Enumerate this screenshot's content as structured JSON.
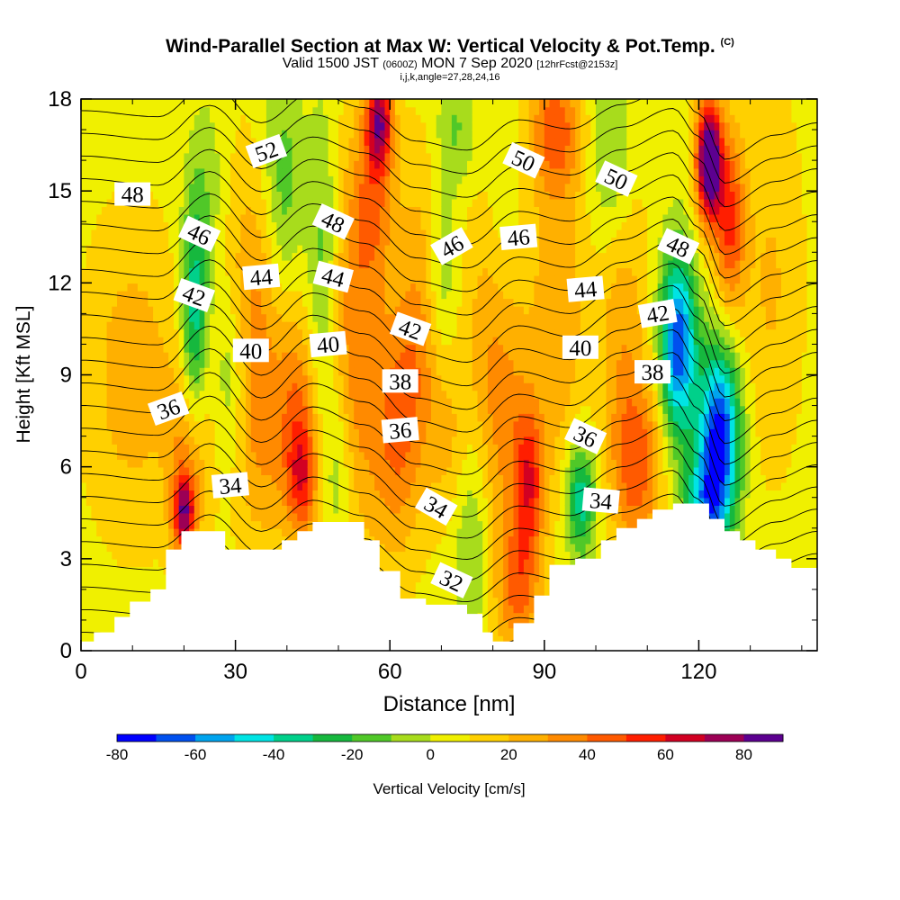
{
  "header": {
    "title": "Wind-Parallel Section at Max W: Vertical Velocity & Pot.Temp.",
    "title_mark": "(C)",
    "valid_prefix": "Valid 1500 JST",
    "valid_zulu": "(0600Z)",
    "valid_date": "MON 7 Sep 2020",
    "forecast": "[12hrFcst@2153z]",
    "params": "i,j,k,angle=27,28,24,16"
  },
  "chart_data": {
    "type": "heatmap",
    "xlabel": "Distance [nm]",
    "ylabel": "Height [Kft MSL]",
    "xlim": [
      0,
      143
    ],
    "ylim": [
      0,
      18
    ],
    "x_ticks": [
      0,
      30,
      60,
      90,
      120
    ],
    "y_ticks": [
      0,
      3,
      6,
      9,
      12,
      15,
      18
    ],
    "colorbar": {
      "label": "Vertical Velocity [cm/s]",
      "min": -80,
      "max": 90,
      "step": 10,
      "tick_values": [
        -80,
        -60,
        -40,
        -20,
        0,
        20,
        40,
        60,
        80
      ],
      "colors": [
        "#0000ff",
        "#0050ee",
        "#00a4ee",
        "#00e4e4",
        "#00d08a",
        "#16b83e",
        "#50c828",
        "#a8dc1c",
        "#f0f000",
        "#ffd000",
        "#ffb000",
        "#ff8a00",
        "#ff5a00",
        "#ff1e00",
        "#d20022",
        "#9c0055",
        "#5c0090"
      ]
    },
    "terrain_kft": [
      [
        0,
        0.3
      ],
      [
        2.5,
        0.3
      ],
      [
        2.5,
        0.6
      ],
      [
        6.5,
        0.6
      ],
      [
        6.5,
        1.1
      ],
      [
        9.5,
        1.1
      ],
      [
        9.5,
        1.6
      ],
      [
        13.5,
        1.6
      ],
      [
        13.5,
        2.0
      ],
      [
        16.5,
        2.0
      ],
      [
        16.5,
        3.3
      ],
      [
        19.5,
        3.3
      ],
      [
        19.5,
        3.9
      ],
      [
        28,
        3.9
      ],
      [
        28,
        3.3
      ],
      [
        39,
        3.3
      ],
      [
        39,
        3.6
      ],
      [
        42,
        3.6
      ],
      [
        42,
        3.9
      ],
      [
        45,
        3.9
      ],
      [
        45,
        4.2
      ],
      [
        55,
        4.2
      ],
      [
        55,
        3.6
      ],
      [
        58,
        3.6
      ],
      [
        58,
        2.6
      ],
      [
        62,
        2.6
      ],
      [
        62,
        1.7
      ],
      [
        67,
        1.7
      ],
      [
        67,
        1.5
      ],
      [
        75,
        1.5
      ],
      [
        75,
        1.2
      ],
      [
        78,
        1.2
      ],
      [
        78,
        0.6
      ],
      [
        80,
        0.6
      ],
      [
        80,
        0.3
      ],
      [
        84,
        0.3
      ],
      [
        84,
        0.9
      ],
      [
        88,
        0.9
      ],
      [
        88,
        1.8
      ],
      [
        91,
        1.8
      ],
      [
        91,
        2.8
      ],
      [
        96,
        2.8
      ],
      [
        96,
        3.0
      ],
      [
        101,
        3.0
      ],
      [
        101,
        3.6
      ],
      [
        104,
        3.6
      ],
      [
        104,
        4.0
      ],
      [
        108,
        4.0
      ],
      [
        108,
        4.3
      ],
      [
        111,
        4.3
      ],
      [
        111,
        4.6
      ],
      [
        115,
        4.6
      ],
      [
        115,
        4.8
      ],
      [
        122,
        4.8
      ],
      [
        122,
        4.3
      ],
      [
        125,
        4.3
      ],
      [
        125,
        3.9
      ],
      [
        128,
        3.9
      ],
      [
        128,
        3.6
      ],
      [
        131,
        3.6
      ],
      [
        131,
        3.3
      ],
      [
        135,
        3.3
      ],
      [
        135,
        3.0
      ],
      [
        138,
        3.0
      ],
      [
        138,
        2.7
      ],
      [
        143,
        2.7
      ]
    ],
    "w_features": [
      {
        "x": 10,
        "z": 9,
        "w": 20,
        "sx": 9,
        "sz": 5
      },
      {
        "x": 20,
        "z": 4.5,
        "w": 60,
        "sx": 2.2,
        "sz": 1.2
      },
      {
        "x": 21,
        "z": 6.5,
        "w": 28,
        "sx": 4,
        "sz": 3
      },
      {
        "x": 22,
        "z": 11,
        "w": -45,
        "sx": 2.5,
        "sz": 4
      },
      {
        "x": 25,
        "z": 15,
        "w": -12,
        "sx": 3,
        "sz": 3
      },
      {
        "x": 29,
        "z": 9,
        "w": -20,
        "sx": 3,
        "sz": 3
      },
      {
        "x": 34,
        "z": 11,
        "w": 28,
        "sx": 6,
        "sz": 5
      },
      {
        "x": 36,
        "z": 6,
        "w": 15,
        "sx": 6,
        "sz": 3
      },
      {
        "x": 39,
        "z": 15,
        "w": -25,
        "sx": 4,
        "sz": 4
      },
      {
        "x": 43,
        "z": 5.6,
        "w": 45,
        "sx": 3,
        "sz": 2
      },
      {
        "x": 42,
        "z": 8.5,
        "w": 25,
        "sx": 4,
        "sz": 3
      },
      {
        "x": 47,
        "z": 12.5,
        "w": -22,
        "sx": 3,
        "sz": 5
      },
      {
        "x": 50,
        "z": 6,
        "w": -18,
        "sx": 3,
        "sz": 3
      },
      {
        "x": 53,
        "z": 10,
        "w": 30,
        "sx": 5,
        "sz": 6
      },
      {
        "x": 58,
        "z": 17.3,
        "w": 60,
        "sx": 2.5,
        "sz": 1.5
      },
      {
        "x": 57,
        "z": 15,
        "w": 30,
        "sx": 4,
        "sz": 3
      },
      {
        "x": 61,
        "z": 7,
        "w": 32,
        "sx": 5,
        "sz": 4
      },
      {
        "x": 66,
        "z": 10,
        "w": 25,
        "sx": 5,
        "sz": 4
      },
      {
        "x": 66,
        "z": 15,
        "w": 8,
        "sx": 4,
        "sz": 3
      },
      {
        "x": 70,
        "z": 12,
        "w": -20,
        "sx": 3,
        "sz": 3
      },
      {
        "x": 72,
        "z": 6.5,
        "w": 15,
        "sx": 4,
        "sz": 3
      },
      {
        "x": 76,
        "z": 4,
        "w": -25,
        "sx": 4,
        "sz": 4
      },
      {
        "x": 73,
        "z": 17,
        "w": -18,
        "sx": 4,
        "sz": 2
      },
      {
        "x": 82,
        "z": 14,
        "w": -18,
        "sx": 4,
        "sz": 4
      },
      {
        "x": 81,
        "z": 9,
        "w": 32,
        "sx": 6,
        "sz": 7
      },
      {
        "x": 87,
        "z": 5.5,
        "w": 45,
        "sx": 3,
        "sz": 2.5
      },
      {
        "x": 85,
        "z": 2,
        "w": 30,
        "sx": 4,
        "sz": 2
      },
      {
        "x": 92,
        "z": 17,
        "w": 35,
        "sx": 5,
        "sz": 2
      },
      {
        "x": 93,
        "z": 11,
        "w": 22,
        "sx": 5,
        "sz": 6
      },
      {
        "x": 97,
        "z": 5,
        "w": -45,
        "sx": 3,
        "sz": 2
      },
      {
        "x": 103,
        "z": 16,
        "w": -22,
        "sx": 4,
        "sz": 3
      },
      {
        "x": 105,
        "z": 11,
        "w": 20,
        "sx": 5,
        "sz": 5
      },
      {
        "x": 108,
        "z": 6,
        "w": 38,
        "sx": 5,
        "sz": 3
      },
      {
        "x": 116,
        "z": 10,
        "w": -75,
        "sx": 3.5,
        "sz": 3
      },
      {
        "x": 124,
        "z": 7,
        "w": -80,
        "sx": 4,
        "sz": 3
      },
      {
        "x": 121,
        "z": 4.5,
        "w": -45,
        "sx": 4,
        "sz": 2
      },
      {
        "x": 122,
        "z": 16,
        "w": 95,
        "sx": 2.5,
        "sz": 2
      },
      {
        "x": 126,
        "z": 14,
        "w": 45,
        "sx": 3,
        "sz": 3
      },
      {
        "x": 134,
        "z": 12,
        "w": 15,
        "sx": 6,
        "sz": 6
      }
    ],
    "theta_isentropes_K": [
      31,
      32,
      33,
      34,
      35,
      36,
      37,
      38,
      39,
      40,
      41,
      42,
      43,
      44,
      45,
      46,
      47,
      48,
      49,
      50,
      51,
      52,
      53,
      54
    ],
    "theta_anchor_x": [
      0,
      15,
      25,
      35,
      45,
      55,
      65,
      75,
      85,
      95,
      105,
      115,
      120,
      125,
      135,
      143
    ],
    "theta_anchor_dz": [
      0,
      -0.2,
      0.9,
      -0.4,
      0.6,
      0.1,
      -1.0,
      -1.3,
      -0.3,
      -0.6,
      0.2,
      0.8,
      -0.1,
      -1.6,
      -0.8,
      -0.4
    ],
    "theta_labels": [
      {
        "text": "52",
        "x": 36,
        "z": 16.3,
        "rot": -20
      },
      {
        "text": "48",
        "x": 10,
        "z": 14.9,
        "rot": 0
      },
      {
        "text": "50",
        "x": 86,
        "z": 16.0,
        "rot": 25
      },
      {
        "text": "50",
        "x": 104,
        "z": 15.4,
        "rot": 25
      },
      {
        "text": "48",
        "x": 49,
        "z": 14.0,
        "rot": 25
      },
      {
        "text": "46",
        "x": 23,
        "z": 13.6,
        "rot": 25
      },
      {
        "text": "46",
        "x": 72,
        "z": 13.2,
        "rot": -30
      },
      {
        "text": "46",
        "x": 85,
        "z": 13.5,
        "rot": -5
      },
      {
        "text": "48",
        "x": 116,
        "z": 13.2,
        "rot": 25
      },
      {
        "text": "44",
        "x": 35,
        "z": 12.2,
        "rot": -5
      },
      {
        "text": "44",
        "x": 49,
        "z": 12.2,
        "rot": 15
      },
      {
        "text": "44",
        "x": 98,
        "z": 11.8,
        "rot": -5
      },
      {
        "text": "42",
        "x": 22,
        "z": 11.6,
        "rot": 20
      },
      {
        "text": "42",
        "x": 64,
        "z": 10.5,
        "rot": 20
      },
      {
        "text": "42",
        "x": 112,
        "z": 11.0,
        "rot": -10
      },
      {
        "text": "40",
        "x": 33,
        "z": 9.8,
        "rot": 0
      },
      {
        "text": "40",
        "x": 48,
        "z": 10.0,
        "rot": -5
      },
      {
        "text": "40",
        "x": 97,
        "z": 9.9,
        "rot": 0
      },
      {
        "text": "38",
        "x": 62,
        "z": 8.8,
        "rot": 0
      },
      {
        "text": "38",
        "x": 111,
        "z": 9.1,
        "rot": 0
      },
      {
        "text": "36",
        "x": 17,
        "z": 7.9,
        "rot": -20
      },
      {
        "text": "36",
        "x": 62,
        "z": 7.2,
        "rot": -5
      },
      {
        "text": "36",
        "x": 98,
        "z": 7.0,
        "rot": 25
      },
      {
        "text": "34",
        "x": 29,
        "z": 5.4,
        "rot": -5
      },
      {
        "text": "34",
        "x": 69,
        "z": 4.7,
        "rot": 30
      },
      {
        "text": "34",
        "x": 101,
        "z": 4.9,
        "rot": 5
      },
      {
        "text": "32",
        "x": 72,
        "z": 2.3,
        "rot": 25
      }
    ]
  }
}
